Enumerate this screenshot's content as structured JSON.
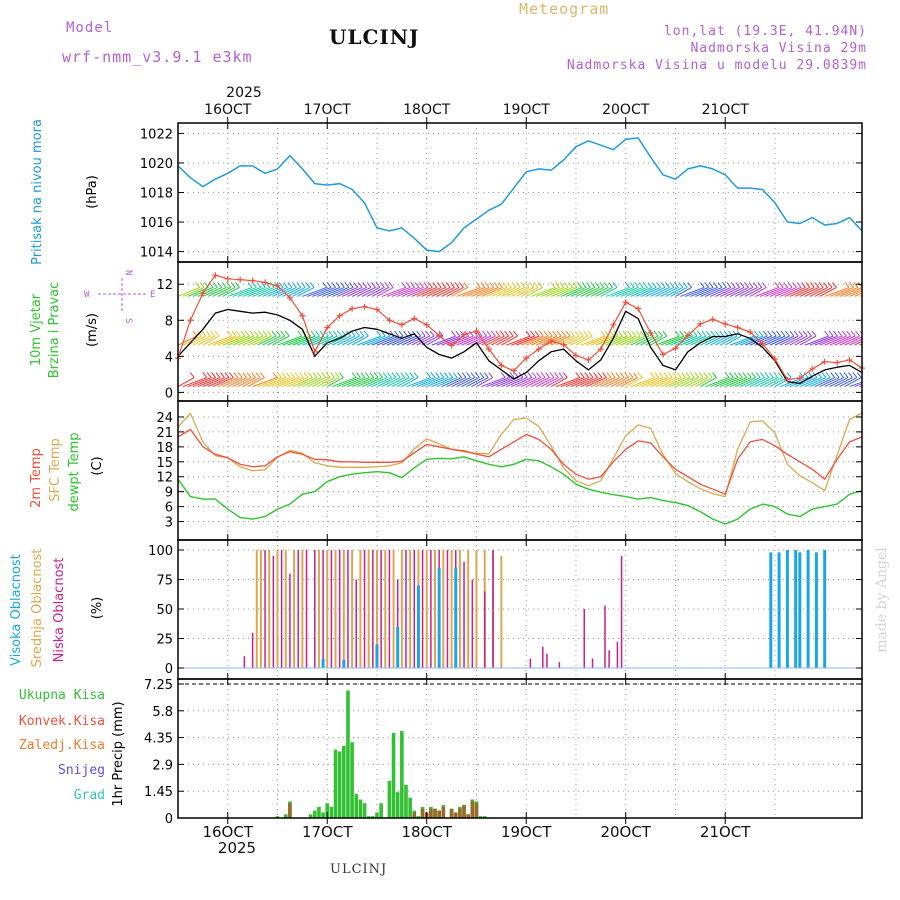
{
  "header": {
    "model_label": "Model",
    "model_name": "wrf-nmm_v3.9.1 e3km",
    "title": "ULCINJ",
    "meteogram": "Meteogram",
    "lonlat": "lon,lat (19.3E, 41.94N)",
    "elevation": "Nadmorska Visina 29m",
    "model_elevation": "Nadmorska Visina u modelu 29.0839m",
    "bottom_label": "ULCINJ",
    "watermark": "made by Angel"
  },
  "axis": {
    "year_top": "2025",
    "year_bottom": "2025",
    "date_labels": [
      "16OCT",
      "17OCT",
      "18OCT",
      "19OCT",
      "20OCT",
      "21OCT"
    ]
  },
  "colors": {
    "pressure": "#1f9bdc",
    "temp2m": "#f0503a",
    "sfc": "#dba850",
    "dew": "#2ec52e",
    "wind_speed": "#000000",
    "gust": "#f0503a",
    "high_cloud": "#1aa6e6",
    "mid_cloud": "#dba850",
    "low_cloud": "#cc1f8c",
    "total_precip": "#33c033",
    "conv_precip": "#f0503a",
    "frozen_precip": "#f07a2a",
    "snow": "#5a4ee0",
    "hail": "#2ec8b4",
    "model_label": "#b35fd6",
    "meteogram_label": "#e2b56b"
  },
  "chart_data": [
    {
      "type": "line",
      "title": "Pritisak na nivou mora",
      "ylabel": "Pritisak na nivou mora",
      "unit": "(hPa)",
      "ylim": [
        1013.7,
        1022.3
      ],
      "yticks": [
        "1014",
        "1016",
        "1018",
        "1020",
        "1022"
      ],
      "x_hours": [
        0,
        3,
        6,
        9,
        12,
        15,
        18,
        21,
        24,
        27,
        30,
        33,
        36,
        39,
        42,
        45,
        48,
        51,
        54,
        57,
        60,
        63,
        66,
        69,
        72,
        75,
        78,
        81,
        84,
        87,
        90,
        93,
        96,
        99,
        102,
        105,
        108,
        111,
        114,
        117,
        120,
        123,
        126,
        129,
        132,
        135,
        138,
        141,
        144,
        147,
        150,
        153,
        156,
        159,
        162,
        165
      ],
      "series": [
        {
          "name": "pressure",
          "values": [
            1019.8,
            1019.0,
            1018.4,
            1018.9,
            1019.3,
            1019.8,
            1019.8,
            1019.3,
            1019.6,
            1020.5,
            1019.6,
            1018.6,
            1018.5,
            1018.6,
            1018.2,
            1017.3,
            1015.6,
            1015.4,
            1015.6,
            1014.9,
            1014.1,
            1014.0,
            1014.6,
            1015.6,
            1016.2,
            1016.8,
            1017.2,
            1018.3,
            1019.4,
            1019.6,
            1019.5,
            1020.2,
            1021.1,
            1021.5,
            1021.2,
            1020.9,
            1021.6,
            1021.7,
            1020.4,
            1019.2,
            1018.9,
            1019.6,
            1019.8,
            1019.6,
            1019.2,
            1018.3,
            1018.3,
            1018.2,
            1017.3,
            1016.0,
            1015.9,
            1016.3,
            1015.8,
            1015.9,
            1016.3,
            1015.4
          ]
        }
      ]
    },
    {
      "type": "line",
      "title": "10m Vjetar Brzina i Pravac",
      "ylabel": "10m Vjetar Brzina i Pravac",
      "unit": "(m/s)",
      "ylim": [
        -0.4,
        13.8
      ],
      "yticks": [
        "0",
        "4",
        "8",
        "12"
      ],
      "compass_labels": [
        "W",
        "E",
        "N",
        "S"
      ],
      "x_hours": [
        0,
        3,
        6,
        9,
        12,
        15,
        18,
        21,
        24,
        27,
        30,
        33,
        36,
        39,
        42,
        45,
        48,
        51,
        54,
        57,
        60,
        63,
        66,
        69,
        72,
        75,
        78,
        81,
        84,
        87,
        90,
        93,
        96,
        99,
        102,
        105,
        108,
        111,
        114,
        117,
        120,
        123,
        126,
        129,
        132,
        135,
        138,
        141,
        144,
        147,
        150,
        153,
        156,
        159,
        162,
        165
      ],
      "series": [
        {
          "name": "wind speed",
          "values": [
            4,
            5.5,
            7,
            8.8,
            9.2,
            9,
            8.8,
            8.9,
            8.6,
            8,
            7,
            4,
            5.5,
            6,
            6.8,
            7.2,
            7,
            6.5,
            6,
            6.5,
            5,
            4.2,
            3.8,
            4.5,
            5.5,
            3.5,
            2.5,
            1.5,
            2.2,
            3.5,
            4.5,
            4.8,
            3.5,
            2.5,
            3.6,
            6,
            9,
            8.2,
            5,
            3,
            2.5,
            4.5,
            5.5,
            6.2,
            6.2,
            6.5,
            6,
            5,
            3.5,
            1.2,
            1,
            1.8,
            2.5,
            2.8,
            3,
            2.2
          ]
        },
        {
          "name": "wind gust",
          "values": [
            3.8,
            8,
            11,
            13,
            12.6,
            12.5,
            12.4,
            12.2,
            11.8,
            10.5,
            8.5,
            4.5,
            7.2,
            8.5,
            9.3,
            9.5,
            9.2,
            8,
            7.5,
            8.2,
            7.5,
            6.3,
            5.2,
            6.4,
            6.8,
            4.8,
            3,
            2.4,
            3.8,
            4.8,
            5.7,
            5.3,
            4.1,
            3.6,
            4.8,
            7.5,
            10,
            9.3,
            6.6,
            4.2,
            4.9,
            6.3,
            7.6,
            8.1,
            7.6,
            7.2,
            6.7,
            5.4,
            3.7,
            1.4,
            1.6,
            2.6,
            3.4,
            3.3,
            3.6,
            2.7
          ]
        }
      ]
    },
    {
      "type": "line",
      "title": "2m Temp / SFC Temp / dewpt Temp",
      "unit": "(C)",
      "ylim": [
        0.5,
        26
      ],
      "yticks": [
        "3",
        "6",
        "9",
        "12",
        "15",
        "18",
        "21",
        "24"
      ],
      "x_hours": [
        0,
        3,
        6,
        9,
        12,
        15,
        18,
        21,
        24,
        27,
        30,
        33,
        36,
        39,
        42,
        45,
        48,
        51,
        54,
        57,
        60,
        63,
        66,
        69,
        72,
        75,
        78,
        81,
        84,
        87,
        90,
        93,
        96,
        99,
        102,
        105,
        108,
        111,
        114,
        117,
        120,
        123,
        126,
        129,
        132,
        135,
        138,
        141,
        144,
        147,
        150,
        153,
        156,
        159,
        162,
        165
      ],
      "series": [
        {
          "name": "2m Temp",
          "values": [
            20,
            21.5,
            18,
            16.5,
            15.8,
            14.5,
            14,
            14.2,
            16,
            17,
            16.5,
            15.5,
            15.4,
            15,
            15,
            14.9,
            14.9,
            14.9,
            15.1,
            16.8,
            18.5,
            18,
            17.5,
            17.2,
            16.5,
            16,
            17.5,
            19,
            20.5,
            19.5,
            17.5,
            14.5,
            12.5,
            11.5,
            12,
            15,
            17.5,
            19.2,
            18.8,
            16,
            13.5,
            12,
            10.5,
            9.5,
            8.5,
            15.5,
            19,
            19.5,
            18.2,
            16.5,
            15,
            13.5,
            11.5,
            15.5,
            19,
            20
          ]
        },
        {
          "name": "SFC Temp",
          "values": [
            22,
            24.7,
            19,
            16.2,
            15.8,
            14,
            13.2,
            13.4,
            15.9,
            17.3,
            16.7,
            14.8,
            14.2,
            13.9,
            13.9,
            13.9,
            14,
            14.2,
            14.8,
            17.6,
            19.6,
            18.6,
            17.5,
            17,
            16.7,
            16.6,
            20.5,
            23.5,
            23.8,
            22.1,
            18.2,
            13.8,
            11.2,
            10.2,
            11.2,
            15.7,
            20.2,
            22.4,
            21.7,
            16.5,
            12.6,
            11,
            9.6,
            8.6,
            8,
            17.5,
            23,
            23.2,
            20.8,
            14.5,
            12.2,
            10.8,
            9.2,
            16.3,
            23.5,
            24.8
          ]
        },
        {
          "name": "dewpt Temp",
          "values": [
            11.5,
            8,
            7.5,
            7.5,
            5.5,
            3.8,
            3.5,
            4,
            5.5,
            6.5,
            8.5,
            9,
            11,
            12,
            12.5,
            12.8,
            13,
            12.8,
            11.8,
            13.8,
            15.5,
            15.7,
            15.6,
            16,
            15.2,
            14.5,
            14,
            14.5,
            15.5,
            15.2,
            14,
            12.5,
            10.5,
            9.5,
            8.9,
            8.4,
            8,
            7.5,
            7.8,
            7.2,
            6.8,
            6.2,
            5,
            3.5,
            2.5,
            3.5,
            5.5,
            6.5,
            6,
            4.5,
            4,
            5.5,
            6,
            6.5,
            8.5,
            9.2
          ]
        }
      ]
    },
    {
      "type": "bar",
      "title": "Visoka / Srednja / Niska Oblacnost",
      "unit": "(%)",
      "ylim": [
        0,
        100
      ],
      "yticks": [
        "0",
        "25",
        "50",
        "75",
        "100"
      ],
      "series": [
        {
          "name": "Visoka Oblacnost",
          "x_hours": [
            35,
            40,
            48,
            53,
            58,
            63,
            67,
            143,
            145,
            147,
            149,
            150,
            152,
            154,
            156
          ],
          "values": [
            8,
            7,
            20,
            35,
            70,
            85,
            85,
            98,
            98,
            100,
            100,
            98,
            100,
            98,
            100
          ]
        },
        {
          "name": "Srednja Oblacnost",
          "x_hours": [
            19,
            20,
            22,
            24,
            26,
            28,
            30,
            34,
            36,
            38,
            40,
            42,
            44,
            46,
            48,
            50,
            52,
            54,
            56,
            58,
            60,
            62,
            64,
            66,
            68,
            70,
            72,
            74,
            76,
            78
          ],
          "values": [
            100,
            100,
            100,
            100,
            100,
            100,
            100,
            100,
            100,
            100,
            100,
            100,
            100,
            100,
            100,
            100,
            100,
            100,
            100,
            100,
            100,
            100,
            100,
            100,
            100,
            100,
            100,
            100,
            100,
            95
          ]
        },
        {
          "name": "Niska Oblacnost",
          "x_hours": [
            16,
            18,
            21,
            23,
            25,
            27,
            29,
            31,
            33,
            35,
            37,
            39,
            41,
            43,
            45,
            47,
            49,
            51,
            53,
            55,
            57,
            59,
            61,
            63,
            65,
            67,
            69,
            71,
            74,
            76,
            85,
            88,
            89,
            92,
            98,
            100,
            103,
            104,
            106,
            107
          ],
          "values": [
            10,
            30,
            100,
            95,
            100,
            80,
            100,
            100,
            100,
            100,
            100,
            100,
            100,
            75,
            100,
            100,
            100,
            100,
            75,
            100,
            100,
            100,
            100,
            100,
            100,
            100,
            90,
            75,
            65,
            100,
            8,
            18,
            12,
            5,
            50,
            8,
            53,
            15,
            22,
            95
          ]
        }
      ]
    },
    {
      "type": "bar",
      "title": "1hr Precip",
      "unit": "1hr Precip (mm)",
      "ylim": [
        0,
        7.25
      ],
      "yticks": [
        "0",
        "1.45",
        "2.9",
        "4.35",
        "5.8",
        "7.25"
      ],
      "legend": [
        "Ukupna Kisa",
        "Konvek.Kisa",
        "Zaledj.Kisa",
        "Snijeg",
        "Grad"
      ],
      "series": [
        {
          "name": "Ukupna Kisa",
          "x_hours": [
            24,
            26,
            27,
            32,
            33,
            34,
            35,
            36,
            37,
            38,
            39,
            40,
            41,
            42,
            43,
            44,
            45,
            46,
            47,
            48,
            49,
            51,
            52,
            53,
            54,
            55,
            56,
            57,
            58,
            59,
            60,
            61,
            62,
            63,
            64,
            66,
            67,
            68,
            69,
            70,
            71,
            72,
            73,
            74
          ],
          "values": [
            0.1,
            0.2,
            0.9,
            0.2,
            0.4,
            0.6,
            0.3,
            0.8,
            0.6,
            3.7,
            3.6,
            3.9,
            6.9,
            4.1,
            1.3,
            1.0,
            0.8,
            0.1,
            0.1,
            0.3,
            0.8,
            2.0,
            4.6,
            1.4,
            4.7,
            1.8,
            1.1,
            0.4,
            0.1,
            0.6,
            0.1,
            0.6,
            0.5,
            0.4,
            0.7,
            0.5,
            0.3,
            0.6,
            0.7,
            0.2,
            1.0,
            0.9,
            0.1,
            0.1
          ]
        },
        {
          "name": "Konvek.Kisa",
          "x_hours": [
            27,
            57,
            59,
            60,
            61,
            62,
            63,
            64,
            66,
            67,
            68,
            69,
            70,
            71,
            72
          ],
          "values": [
            0.8,
            0.3,
            0.5,
            0.3,
            0.5,
            0.5,
            0.4,
            0.6,
            0.5,
            0.3,
            0.5,
            0.7,
            0.2,
            0.9,
            0.8
          ]
        }
      ]
    }
  ],
  "panel_labels": {
    "pressure": {
      "line1": "Pritisak na nivou mora",
      "unit": "(hPa)"
    },
    "wind": {
      "line1": "10m Vjetar",
      "line2": "Brzina i Pravac",
      "unit": "(m/s)",
      "compass_w": "W",
      "compass_e": "E",
      "compass_n": "N",
      "compass_s": "S"
    },
    "temp": {
      "t2m": "2m Temp",
      "sfc": "SFC Temp",
      "dew": "dewpt Temp",
      "unit": "(C)"
    },
    "cloud": {
      "high": "Visoka Oblacnost",
      "mid": "Srednja Oblacnost",
      "low": "Niska Oblacnost",
      "unit": "(%)"
    },
    "precip": {
      "total": "Ukupna Kisa",
      "conv": "Konvek.Kisa",
      "frozen": "Zaledj.Kisa",
      "snow": "Snijeg",
      "hail": "Grad",
      "unit": "1hr Precip (mm)"
    }
  }
}
